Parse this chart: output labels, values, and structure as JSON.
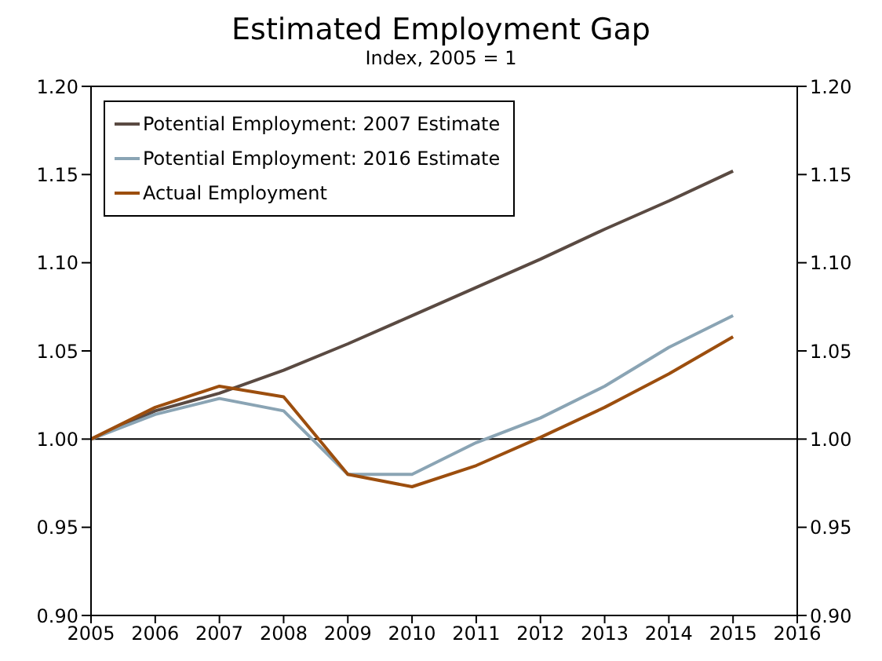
{
  "chart_data": {
    "type": "line",
    "title": "Estimated Employment Gap",
    "subtitle": "Index, 2005 = 1",
    "x": [
      2005,
      2006,
      2007,
      2008,
      2009,
      2010,
      2011,
      2012,
      2013,
      2014,
      2015
    ],
    "xlim": [
      2005,
      2016
    ],
    "xticks": [
      2005,
      2006,
      2007,
      2008,
      2009,
      2010,
      2011,
      2012,
      2013,
      2014,
      2015,
      2016
    ],
    "ylim": [
      0.9,
      1.2
    ],
    "yticks": [
      {
        "value": 0.9,
        "label": "0.90"
      },
      {
        "value": 0.95,
        "label": "0.95"
      },
      {
        "value": 1.0,
        "label": "1.00"
      },
      {
        "value": 1.05,
        "label": "1.05"
      },
      {
        "value": 1.1,
        "label": "1.10"
      },
      {
        "value": 1.15,
        "label": "1.15"
      },
      {
        "value": 1.2,
        "label": "1.20"
      }
    ],
    "y2lim": [
      0.9,
      1.2
    ],
    "y2ticks": [
      {
        "value": 0.9,
        "label": "0.90"
      },
      {
        "value": 0.95,
        "label": "0.95"
      },
      {
        "value": 1.0,
        "label": "1.00"
      },
      {
        "value": 1.05,
        "label": "1.05"
      },
      {
        "value": 1.1,
        "label": "1.10"
      },
      {
        "value": 1.15,
        "label": "1.15"
      },
      {
        "value": 1.2,
        "label": "1.20"
      }
    ],
    "series": [
      {
        "name": "Potential Employment: 2007 Estimate",
        "color": "#5a4a42",
        "values": [
          1.0,
          1.016,
          1.026,
          1.039,
          1.054,
          1.07,
          1.086,
          1.102,
          1.119,
          1.135,
          1.152
        ]
      },
      {
        "name": "Potential Employment: 2016 Estimate",
        "color": "#8aa4b4",
        "values": [
          1.0,
          1.014,
          1.023,
          1.016,
          0.98,
          0.98,
          0.998,
          1.012,
          1.03,
          1.052,
          1.07
        ]
      },
      {
        "name": "Actual Employment",
        "color": "#9c4e0e",
        "values": [
          1.0,
          1.018,
          1.03,
          1.024,
          0.98,
          0.973,
          0.985,
          1.001,
          1.018,
          1.037,
          1.058
        ]
      }
    ],
    "ref_lines": [
      {
        "axis": "y",
        "value": 1.0,
        "color": "#000000"
      }
    ],
    "legend": "top left",
    "grid": false,
    "marker": "none",
    "line_style": "solid"
  }
}
